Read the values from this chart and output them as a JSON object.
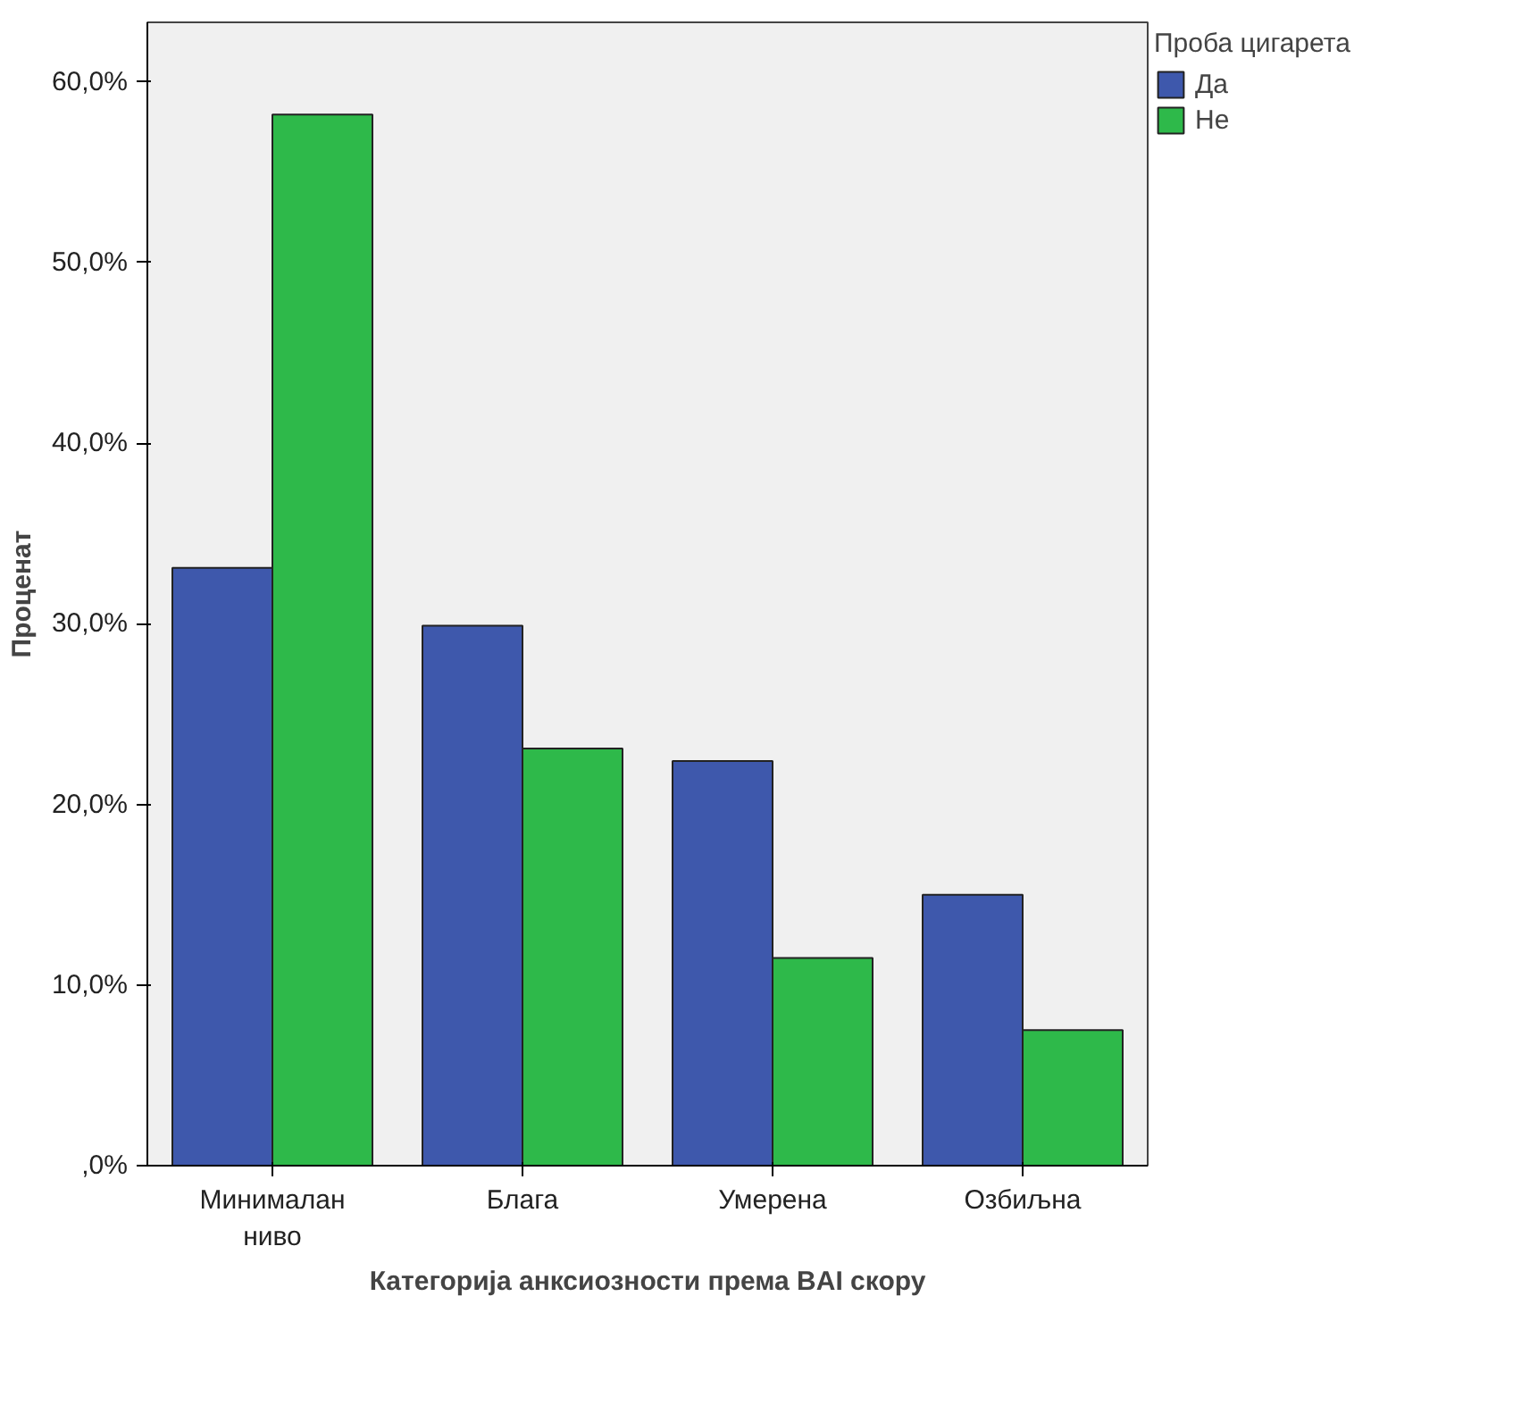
{
  "chart_data": {
    "type": "bar",
    "xlabel": "Категорија анксиозности према BAI скору",
    "ylabel": "Проценат",
    "legend_title": "Проба цигарета",
    "categories": [
      "Минималан ниво",
      "Блага",
      "Умерена",
      "Озбиљна"
    ],
    "series": [
      {
        "name": "Да",
        "color": "#3e58ac",
        "values": [
          33.1,
          29.9,
          22.4,
          15.0
        ]
      },
      {
        "name": "Не",
        "color": "#2eb94a",
        "values": [
          58.2,
          23.1,
          11.5,
          7.5
        ]
      }
    ],
    "ylim": [
      0,
      63.3
    ],
    "yticks": [
      {
        "value": 0,
        "label": ",0%"
      },
      {
        "value": 10,
        "label": "10,0%"
      },
      {
        "value": 20,
        "label": "20,0%"
      },
      {
        "value": 30,
        "label": "30,0%"
      },
      {
        "value": 40,
        "label": "40,0%"
      },
      {
        "value": 50,
        "label": "50,0%"
      },
      {
        "value": 60,
        "label": "60,0%"
      }
    ],
    "grid": false,
    "legend": "top right"
  }
}
